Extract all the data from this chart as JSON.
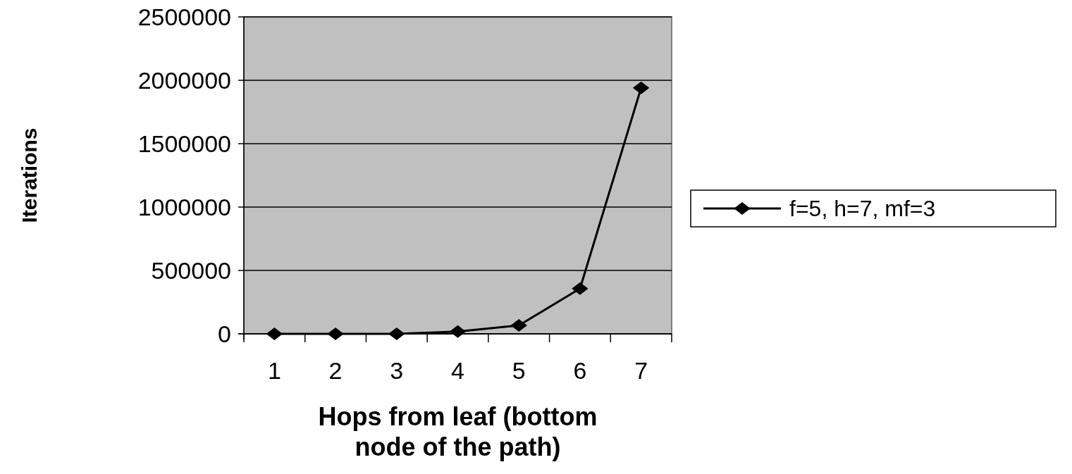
{
  "chart_data": {
    "type": "line",
    "xlabel": "Hops from leaf (bottom node of the path)",
    "ylabel": "Iterations",
    "categories": [
      "1",
      "2",
      "3",
      "4",
      "5",
      "6",
      "7"
    ],
    "series": [
      {
        "name": "f=5, h=7, mf=3",
        "color": "#000000",
        "values": [
          0,
          0,
          0,
          18000,
          67000,
          357000,
          1940000
        ]
      }
    ],
    "ylim": [
      0,
      2500000
    ],
    "yticks": [
      0,
      500000,
      1000000,
      1500000,
      2000000,
      2500000
    ],
    "grid": "y",
    "legend": "right",
    "marker": "diamond",
    "line_style": "solid"
  }
}
